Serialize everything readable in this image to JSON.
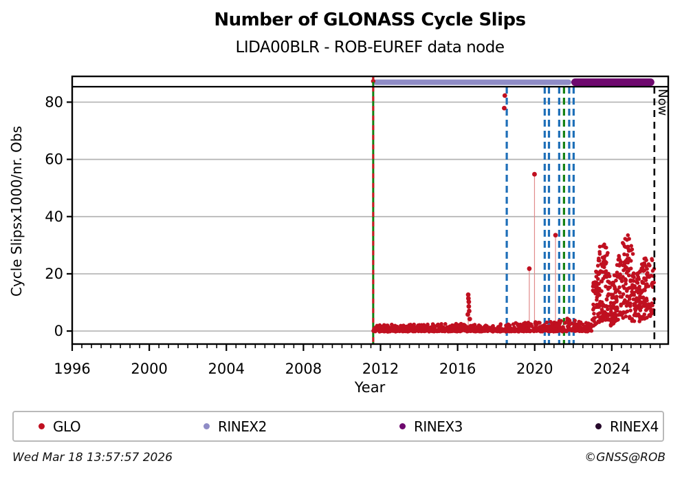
{
  "header": {
    "title": "Number of GLONASS Cycle Slips",
    "subtitle": "LIDA00BLR - ROB-EUREF data node"
  },
  "footer": {
    "timestamp": "Wed Mar 18 13:57:57 2026",
    "credit": "©GNSS@ROB"
  },
  "chart_data": {
    "type": "scatter",
    "title": "Number of GLONASS Cycle Slips",
    "subtitle": "LIDA00BLR - ROB-EUREF data node",
    "xlabel": "Year",
    "ylabel": "Cycle Slipsx1000/nr. Obs",
    "x_range": [
      1996,
      2026.93
    ],
    "y_range": [
      -4.55,
      89.0
    ],
    "y_ticks": [
      0,
      20,
      40,
      60,
      80
    ],
    "x_major_ticks": [
      1996,
      2000,
      2004,
      2008,
      2012,
      2016,
      2020,
      2024
    ],
    "x_minor_step": 0.5,
    "grid": "horizontal",
    "legend": [
      {
        "label": "GLO",
        "color": "#c01020"
      },
      {
        "label": "RINEX2",
        "color": "#8f8cc6"
      },
      {
        "label": "RINEX3",
        "color": "#6e096e"
      },
      {
        "label": "RINEX4",
        "color": "#26092b"
      }
    ],
    "colors": {
      "glo_points": "#c01020",
      "event_blue": "#1e6fb8",
      "event_green": "#128012",
      "event_red_overlay": "#cc1822",
      "gridline": "#b3b3b3",
      "dropline": "#e08a8a",
      "now_line": "#000000"
    },
    "rinex_bars": [
      {
        "name": "RINEX2",
        "start": 2011.62,
        "end": 2021.9,
        "color": "#8f8cc6",
        "thickness": 8
      },
      {
        "name": "RINEX3",
        "start": 2021.9,
        "end": 2026.21,
        "color": "#6e096e",
        "thickness": 11
      }
    ],
    "start_marker": {
      "year": 2011.62,
      "color": "#c01020"
    },
    "event_lines": [
      {
        "year": 2011.62,
        "kind": "receiver-antenna-change",
        "style": "solid",
        "color": "#128012",
        "overlay_color": "#cc1822"
      },
      {
        "year": 2018.55,
        "kind": "change",
        "style": "dashed",
        "color": "#1e6fb8"
      },
      {
        "year": 2020.52,
        "kind": "change",
        "style": "dashed",
        "color": "#1e6fb8"
      },
      {
        "year": 2020.74,
        "kind": "change",
        "style": "dashed",
        "color": "#1e6fb8"
      },
      {
        "year": 2021.27,
        "kind": "change",
        "style": "dashed",
        "color": "#1e6fb8"
      },
      {
        "year": 2021.52,
        "kind": "change",
        "style": "dashed",
        "color": "#128012"
      },
      {
        "year": 2021.79,
        "kind": "change",
        "style": "dashed",
        "color": "#1e6fb8"
      },
      {
        "year": 2022.02,
        "kind": "change",
        "style": "dashed",
        "color": "#1e6fb8"
      }
    ],
    "now": {
      "year": 2026.21,
      "label": "Now"
    },
    "outlier_points": [
      {
        "year": 2018.45,
        "value": 82.3,
        "drop": false
      },
      {
        "year": 2018.42,
        "value": 77.9,
        "drop": false
      },
      {
        "year": 2019.72,
        "value": 21.8,
        "drop": true
      },
      {
        "year": 2019.99,
        "value": 54.8,
        "drop": true
      },
      {
        "year": 2021.08,
        "value": 33.5,
        "drop": true
      },
      {
        "year": 2016.55,
        "value": 12.7,
        "drop": true
      },
      {
        "year": 2016.56,
        "value": 11.4,
        "drop": false
      },
      {
        "year": 2016.58,
        "value": 10.2,
        "drop": false
      },
      {
        "year": 2016.58,
        "value": 8.6,
        "drop": false
      },
      {
        "year": 2016.6,
        "value": 7.0,
        "drop": false
      },
      {
        "year": 2016.53,
        "value": 5.8,
        "drop": false
      },
      {
        "year": 2016.63,
        "value": 4.2,
        "drop": false
      }
    ],
    "scatter_bands": [
      {
        "name": "baseline-low-noise",
        "points_per_year": 80,
        "bias": 2.6,
        "envelope": [
          [
            2011.62,
            0,
            2.4
          ],
          [
            2013.0,
            0,
            2.0
          ],
          [
            2014.5,
            0,
            2.4
          ],
          [
            2016.4,
            0,
            2.6
          ],
          [
            2017.5,
            0,
            2.0
          ],
          [
            2019.0,
            0,
            2.6
          ],
          [
            2020.3,
            0,
            3.6
          ],
          [
            2021.0,
            0,
            3.2
          ],
          [
            2021.6,
            0,
            4.6
          ],
          [
            2022.1,
            0,
            4.2
          ],
          [
            2022.6,
            0,
            3.2
          ],
          [
            2022.97,
            0,
            3.0
          ]
        ]
      },
      {
        "name": "noisy-cluster",
        "points_per_year": 150,
        "bias": 1.2,
        "envelope": [
          [
            2022.98,
            1,
            16
          ],
          [
            2023.1,
            2,
            19
          ],
          [
            2023.35,
            3,
            30
          ],
          [
            2023.75,
            4,
            31
          ],
          [
            2023.95,
            2,
            14
          ],
          [
            2024.15,
            3,
            20
          ],
          [
            2024.45,
            4,
            29
          ],
          [
            2024.8,
            5,
            34.5
          ],
          [
            2025.1,
            3,
            28
          ],
          [
            2025.4,
            3,
            20
          ],
          [
            2025.7,
            4,
            26
          ],
          [
            2026.0,
            5,
            28
          ],
          [
            2026.2,
            6,
            27.5
          ]
        ]
      }
    ],
    "scatter_seed": 1337
  }
}
